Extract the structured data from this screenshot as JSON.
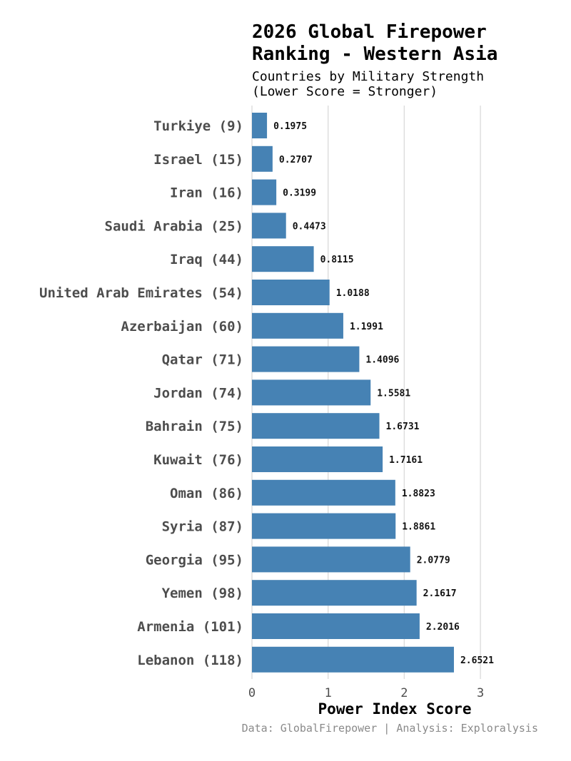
{
  "chart_data": {
    "type": "bar",
    "orientation": "horizontal",
    "title": "2026 Global Firepower\nRanking - Western Asia",
    "subtitle": "Countries by Military Strength\n(Lower Score = Stronger)",
    "xlabel": "Power Index Score",
    "ylabel": "",
    "xlim": [
      0,
      3
    ],
    "xticks": [
      0,
      1,
      2,
      3
    ],
    "grid": "vertical",
    "bar_color": "#4682b4",
    "categories": [
      "Turkiye (9)",
      "Israel (15)",
      "Iran (16)",
      "Saudi Arabia (25)",
      "Iraq (44)",
      "United Arab Emirates (54)",
      "Azerbaijan (60)",
      "Qatar (71)",
      "Jordan (74)",
      "Bahrain (75)",
      "Kuwait (76)",
      "Oman (86)",
      "Syria (87)",
      "Georgia (95)",
      "Yemen (98)",
      "Armenia (101)",
      "Lebanon (118)"
    ],
    "values": [
      0.1975,
      0.2707,
      0.3199,
      0.4473,
      0.8115,
      1.0188,
      1.1991,
      1.4096,
      1.5581,
      1.6731,
      1.7161,
      1.8823,
      1.8861,
      2.0779,
      2.1617,
      2.2016,
      2.6521
    ],
    "labels": [
      "0.1975",
      "0.2707",
      "0.3199",
      "0.4473",
      "0.8115",
      "1.0188",
      "1.1991",
      "1.4096",
      "1.5581",
      "1.6731",
      "1.7161",
      "1.8823",
      "1.8861",
      "2.0779",
      "2.1617",
      "2.2016",
      "2.6521"
    ]
  },
  "caption": "Data: GlobalFirepower | Analysis: Exploralysis"
}
